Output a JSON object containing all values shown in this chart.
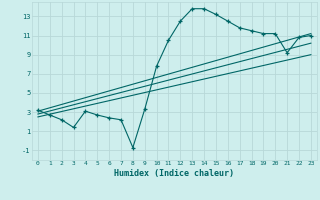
{
  "xlabel": "Humidex (Indice chaleur)",
  "background_color": "#ceeeed",
  "grid_color": "#b8d8d8",
  "line_color": "#006666",
  "x_ticks": [
    0,
    1,
    2,
    3,
    4,
    5,
    6,
    7,
    8,
    9,
    10,
    11,
    12,
    13,
    14,
    15,
    16,
    17,
    18,
    19,
    20,
    21,
    22,
    23
  ],
  "y_ticks": [
    -1,
    1,
    3,
    5,
    7,
    9,
    11,
    13
  ],
  "xlim": [
    -0.5,
    23.5
  ],
  "ylim": [
    -2.0,
    14.5
  ],
  "series1_x": [
    0,
    1,
    2,
    3,
    4,
    5,
    6,
    7,
    8,
    9,
    10,
    11,
    12,
    13,
    14,
    15,
    16,
    17,
    18,
    19,
    20,
    21,
    22,
    23
  ],
  "series1_y": [
    3.2,
    2.7,
    2.2,
    1.4,
    3.1,
    2.7,
    2.4,
    2.2,
    -0.7,
    3.3,
    7.8,
    10.5,
    12.5,
    13.8,
    13.8,
    13.2,
    12.5,
    11.8,
    11.5,
    11.2,
    11.2,
    9.2,
    10.8,
    11.0
  ],
  "series2_x": [
    0,
    23
  ],
  "series2_y": [
    3.1,
    11.2
  ],
  "series3_x": [
    0,
    23
  ],
  "series3_y": [
    2.8,
    10.2
  ],
  "series4_x": [
    0,
    23
  ],
  "series4_y": [
    2.5,
    9.0
  ]
}
